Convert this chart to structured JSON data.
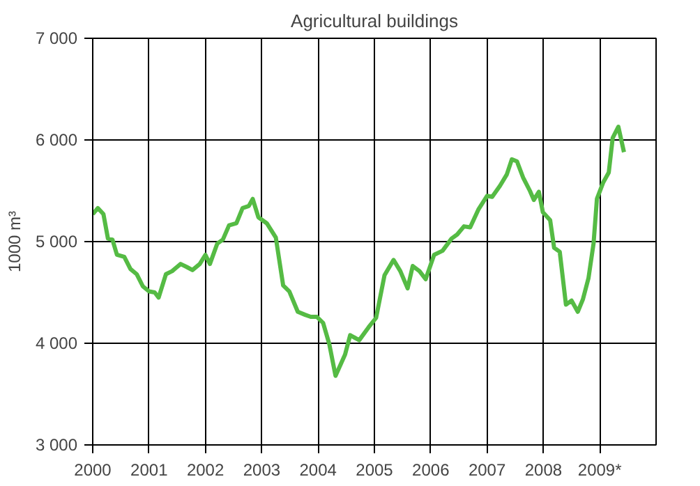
{
  "chart_data": {
    "type": "line",
    "title": "Agricultural buildings",
    "ylabel": "1000 m³",
    "x": [
      2000.0,
      2000.09,
      2000.19,
      2000.27,
      2000.35,
      2000.43,
      2000.56,
      2000.67,
      2000.78,
      2000.89,
      2001.0,
      2001.1,
      2001.17,
      2001.3,
      2001.41,
      2001.56,
      2001.67,
      2001.77,
      2001.9,
      2002.0,
      2002.08,
      2002.21,
      2002.31,
      2002.42,
      2002.55,
      2002.66,
      2002.77,
      2002.84,
      2002.94,
      2003.09,
      2003.25,
      2003.38,
      2003.49,
      2003.64,
      2003.77,
      2003.87,
      2003.98,
      2004.09,
      2004.2,
      2004.31,
      2004.48,
      2004.57,
      2004.73,
      2004.9,
      2005.03,
      2005.18,
      2005.34,
      2005.46,
      2005.59,
      2005.68,
      2005.8,
      2005.91,
      2006.06,
      2006.21,
      2006.37,
      2006.47,
      2006.59,
      2006.7,
      2006.85,
      2007.0,
      2007.09,
      2007.23,
      2007.35,
      2007.44,
      2007.53,
      2007.64,
      2007.76,
      2007.83,
      2007.92,
      2007.99,
      2008.12,
      2008.19,
      2008.29,
      2008.4,
      2008.5,
      2008.61,
      2008.7,
      2008.8,
      2008.89,
      2008.95,
      2009.06,
      2009.16,
      2009.23,
      2009.33,
      2009.43
    ],
    "series": [
      {
        "color": "#55bb44",
        "values": [
          5270,
          5330,
          5270,
          5030,
          5020,
          4870,
          4850,
          4730,
          4680,
          4560,
          4510,
          4500,
          4450,
          4680,
          4710,
          4780,
          4750,
          4720,
          4780,
          4870,
          4780,
          4980,
          5020,
          5160,
          5180,
          5330,
          5350,
          5420,
          5240,
          5180,
          5040,
          4570,
          4510,
          4310,
          4280,
          4260,
          4260,
          4200,
          3990,
          3680,
          3890,
          4080,
          4030,
          4160,
          4250,
          4670,
          4820,
          4710,
          4540,
          4760,
          4710,
          4630,
          4870,
          4910,
          5030,
          5070,
          5150,
          5140,
          5320,
          5450,
          5440,
          5550,
          5660,
          5810,
          5790,
          5630,
          5500,
          5410,
          5490,
          5290,
          5210,
          4940,
          4900,
          4380,
          4420,
          4310,
          4430,
          4640,
          4980,
          5420,
          5580,
          5680,
          6020,
          6130,
          5880
        ]
      }
    ],
    "xlim": [
      2000,
      2010
    ],
    "xticks": [
      2000,
      2001,
      2002,
      2003,
      2004,
      2005,
      2006,
      2007,
      2008,
      {
        "value": 2009,
        "label": "2009*"
      }
    ],
    "ylim": [
      3000,
      7000
    ],
    "yticks": [
      {
        "value": 3000,
        "label": "3 000"
      },
      {
        "value": 4000,
        "label": "4 000"
      },
      {
        "value": 5000,
        "label": "5 000"
      },
      {
        "value": 6000,
        "label": "6 000"
      },
      {
        "value": 7000,
        "label": "7 000"
      }
    ],
    "grid": true,
    "line_style": "solid"
  }
}
